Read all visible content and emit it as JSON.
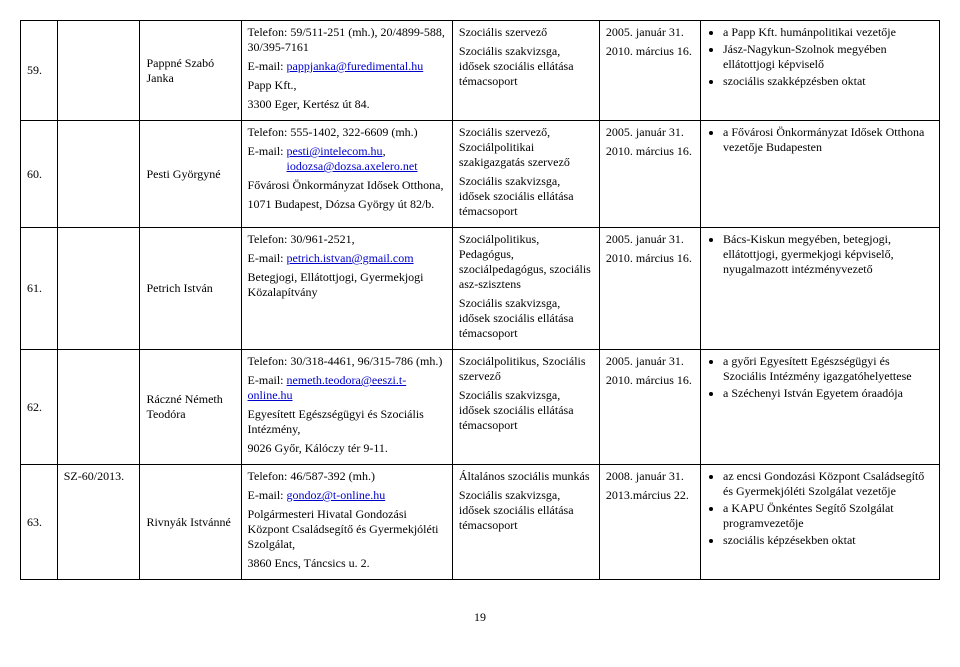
{
  "rows": [
    {
      "num": "59.",
      "file": "",
      "name": "Pappné Szabó Janka",
      "contact_lines": [
        "Telefon: 59/511-251 (mh.), 20/4899-588, 30/395-7161",
        "E-mail:"
      ],
      "email": "pappjanka@furedimental.hu",
      "after_email": [
        "Papp Kft.,",
        "3300 Eger, Kertész út 84."
      ],
      "role_lines": [
        "Szociális szervező",
        "Szociális szakvizsga, idősek szociális ellátása témacsoport"
      ],
      "date_lines": [
        "2005. január 31.",
        "2010. március 16."
      ],
      "bullets": [
        "a Papp Kft. humánpolitikai vezetője",
        "Jász-Nagykun-Szolnok megyében ellátottjogi képviselő",
        "szociális szakképzésben oktat"
      ]
    },
    {
      "num": "60.",
      "file": "",
      "name": "Pesti Györgyné",
      "contact_lines": [
        "Telefon: 555-1402, 322-6609 (mh.)",
        "E-mail:"
      ],
      "email": "pesti@intelecom.hu",
      "email2_prefix": ",",
      "email2_indent": "             ",
      "email2": "iodozsa@dozsa.axelero.net",
      "after_email": [
        "Fővárosi Önkormányzat Idősek Otthona,",
        "1071 Budapest, Dózsa György út 82/b."
      ],
      "role_lines": [
        "Szociális szervező, Szociálpolitikai szakigazgatás szervező",
        "Szociális szakvizsga, idősek szociális ellátása témacsoport"
      ],
      "date_lines": [
        "2005. január 31.",
        "2010. március 16."
      ],
      "bullets": [
        "a Fővárosi Önkormányzat Idősek Otthona vezetője Budapesten"
      ]
    },
    {
      "num": "61.",
      "file": "",
      "name": "Petrich István",
      "contact_lines": [
        "Telefon: 30/961-2521,",
        "E-mail:"
      ],
      "email": "petrich.istvan@gmail.com",
      "after_email": [
        "Betegjogi, Ellátottjogi, Gyermekjogi Közalapítvány"
      ],
      "role_lines": [
        "Szociálpolitikus, Pedagógus, szociálpedagógus, szociális asz-szisztens",
        "Szociális szakvizsga, idősek szociális ellátása témacsoport"
      ],
      "date_lines": [
        "2005. január 31.",
        "2010. március 16."
      ],
      "bullets": [
        "Bács-Kiskun megyében, betegjogi, ellátottjogi, gyermekjogi képviselő, nyugalmazott intézményvezető"
      ]
    },
    {
      "num": "62.",
      "file": "",
      "name": "Ráczné Németh Teodóra",
      "contact_lines": [
        "Telefon: 30/318-4461, 96/315-786 (mh.)",
        "E-mail:"
      ],
      "email": "nemeth.teodora@eeszi.t-online.hu",
      "after_email": [
        "Egyesített Egészségügyi és Szociális Intézmény,",
        "9026 Győr, Kálóczy tér 9-11."
      ],
      "role_lines": [
        "Szociálpolitikus, Szociális szervező",
        "Szociális szakvizsga, idősek szociális ellátása témacsoport"
      ],
      "date_lines": [
        "2005. január 31.",
        "2010. március 16."
      ],
      "bullets": [
        "a győri Egyesített Egészségügyi és Szociális Intézmény igazgatóhelyettese",
        "a Széchenyi István Egyetem óraadója"
      ]
    },
    {
      "num": "63.",
      "file": "SZ-60/2013.",
      "name": "Rivnyák Istvánné",
      "contact_lines": [
        "Telefon: 46/587-392 (mh.)",
        "E-mail:"
      ],
      "email": "gondoz@t-online.hu",
      "after_email": [
        "Polgármesteri Hivatal Gondozási Központ Családsegítő és Gyermekjóléti Szolgálat,",
        "3860 Encs, Táncsics u. 2."
      ],
      "role_lines": [
        "Általános szociális munkás",
        "Szociális szakvizsga, idősek szociális ellátása témacsoport"
      ],
      "date_lines": [
        "2008. január 31.",
        "2013.március 22."
      ],
      "bullets": [
        "az encsi Gondozási Központ Családsegítő és Gyermekjóléti Szolgálat vezetője",
        "a KAPU Önkéntes Segítő Szolgálat programvezetője",
        "szociális képzésekben oktat"
      ]
    }
  ],
  "page_number": "19"
}
